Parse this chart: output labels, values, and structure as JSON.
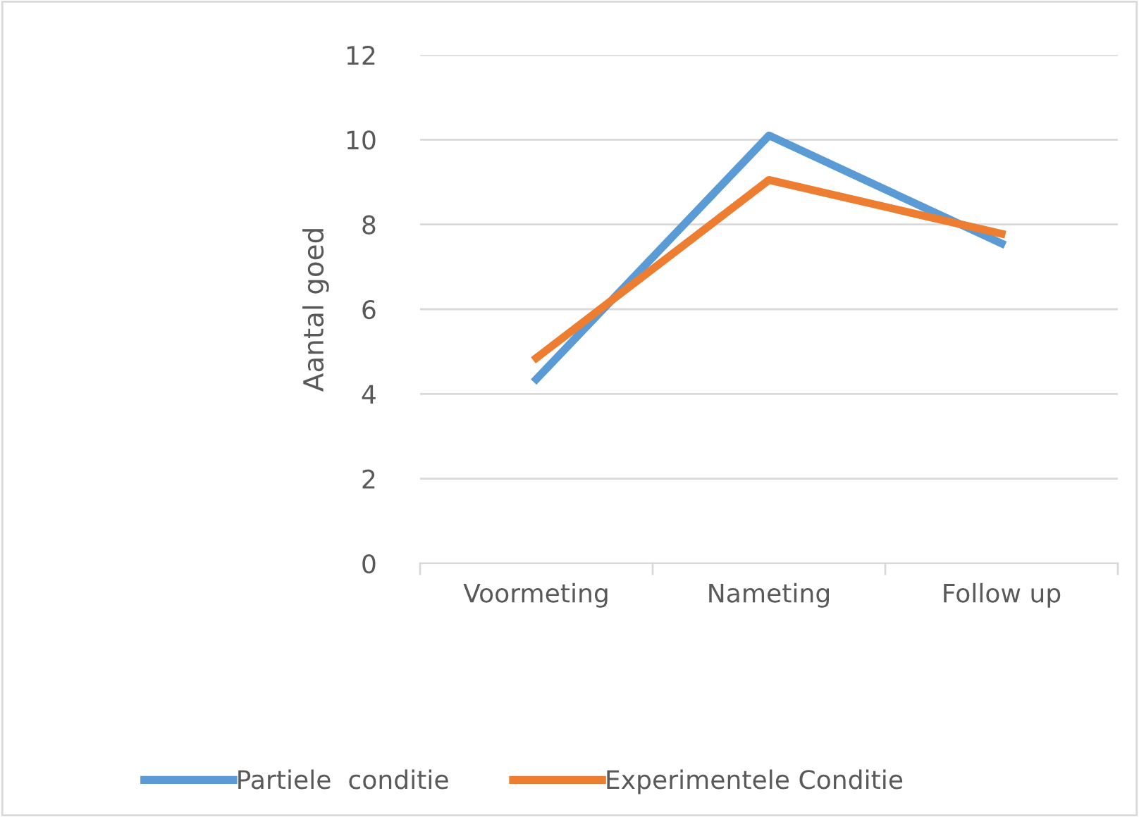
{
  "chart_data": {
    "type": "line",
    "ylabel": "Aantal goed",
    "categories": [
      "Voormeting",
      "Nameting",
      "Follow up"
    ],
    "series": [
      {
        "name": "Partiele  conditie",
        "color": "#5b9bd5",
        "values": [
          4.35,
          10.1,
          7.55
        ]
      },
      {
        "name": "Experimentele Conditie",
        "color": "#ed7d31",
        "values": [
          4.85,
          9.05,
          7.78
        ]
      }
    ],
    "ylim": [
      0,
      12
    ],
    "yticks": [
      0,
      2,
      4,
      6,
      8,
      10,
      12
    ],
    "grid": "y",
    "legend": "bottom",
    "marker": "none",
    "line_style": "solid"
  }
}
